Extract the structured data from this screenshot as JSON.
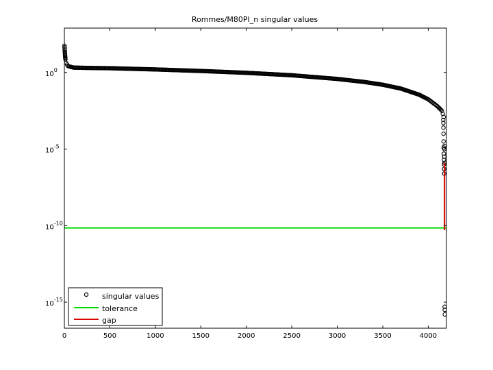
{
  "chart_data": {
    "type": "scatter",
    "title": "Rommes/M80PI_n singular values",
    "xlabel": "",
    "ylabel": "",
    "xlim": [
      0,
      4200
    ],
    "ylim_log10": [
      -16.7,
      2.9
    ],
    "yscale": "log",
    "grid": false,
    "legend_position": "bottom-left",
    "x_ticks": [
      "0",
      "500",
      "1000",
      "1500",
      "2000",
      "2500",
      "3000",
      "3500",
      "4000"
    ],
    "x_tick_values": [
      0,
      500,
      1000,
      1500,
      2000,
      2500,
      3000,
      3500,
      4000
    ],
    "y_ticks": [
      {
        "base": "10",
        "exp": "0",
        "log10": 0
      },
      {
        "base": "10",
        "exp": "-5",
        "log10": -5
      },
      {
        "base": "10",
        "exp": "-10",
        "log10": -10
      },
      {
        "base": "10",
        "exp": "-15",
        "log10": -15
      }
    ],
    "n_points": 4182,
    "series": [
      {
        "name": "singular values",
        "marker": "circle",
        "color": "#000000",
        "curve_log10": [
          [
            1,
            1.75
          ],
          [
            3,
            1.55
          ],
          [
            5,
            1.35
          ],
          [
            8,
            1.1
          ],
          [
            12,
            0.85
          ],
          [
            20,
            0.62
          ],
          [
            40,
            0.42
          ],
          [
            100,
            0.32
          ],
          [
            250,
            0.3
          ],
          [
            500,
            0.28
          ],
          [
            1000,
            0.2
          ],
          [
            1500,
            0.1
          ],
          [
            2000,
            -0.02
          ],
          [
            2500,
            -0.18
          ],
          [
            3000,
            -0.42
          ],
          [
            3300,
            -0.62
          ],
          [
            3500,
            -0.8
          ],
          [
            3700,
            -1.05
          ],
          [
            3900,
            -1.45
          ],
          [
            4000,
            -1.75
          ],
          [
            4100,
            -2.2
          ],
          [
            4150,
            -2.5
          ],
          [
            4170,
            -2.9
          ]
        ],
        "tail_log10": [
          [
            4165,
            -3.1
          ],
          [
            4166,
            -3.3
          ],
          [
            4167,
            -3.6
          ],
          [
            4168,
            -4.0
          ],
          [
            4169,
            -4.5
          ],
          [
            4170,
            -4.9
          ],
          [
            4171,
            -5.3
          ],
          [
            4172,
            -5.7
          ],
          [
            4173,
            -6.0
          ],
          [
            4174,
            -6.3
          ],
          [
            4175,
            -6.6
          ],
          [
            4176,
            -5.5
          ],
          [
            4177,
            -5.0
          ],
          [
            4178,
            -4.8
          ],
          [
            4179,
            -5.9
          ],
          [
            4180,
            -15.3
          ],
          [
            4181,
            -15.5
          ],
          [
            4182,
            -15.8
          ]
        ]
      },
      {
        "name": "tolerance",
        "color": "#00dd00",
        "value_log10": -10.15
      },
      {
        "name": "gap",
        "color": "#dd0000",
        "x": 4179,
        "from_log10": -5.9,
        "to_log10": -10.3
      }
    ]
  }
}
